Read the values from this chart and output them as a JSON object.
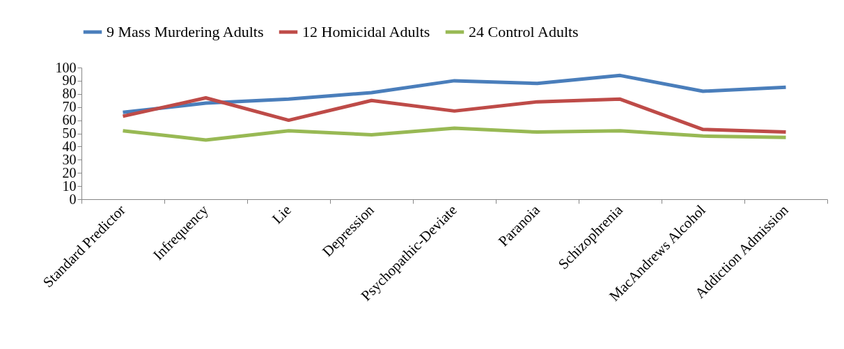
{
  "chart_data": {
    "type": "line",
    "categories": [
      "Standard Predictor",
      "Infrequency",
      "Lie",
      "Depression",
      "Psychopathic-Deviate",
      "Paranoia",
      "Schizophrenia",
      "MacAndrews Alcohol",
      "Addiction Admission"
    ],
    "series": [
      {
        "name": "9 Mass Murdering Adults",
        "color": "#4a7ebb",
        "values": [
          66,
          73,
          76,
          81,
          90,
          88,
          94,
          82,
          85
        ]
      },
      {
        "name": "12 Homicidal Adults",
        "color": "#be4b48",
        "values": [
          63,
          77,
          60,
          75,
          67,
          74,
          76,
          53,
          51
        ]
      },
      {
        "name": "24 Control Adults",
        "color": "#98b954",
        "values": [
          52,
          45,
          52,
          49,
          54,
          51,
          52,
          48,
          47
        ]
      }
    ],
    "ylim": [
      0,
      100
    ],
    "yticks": [
      0,
      10,
      20,
      30,
      40,
      50,
      60,
      70,
      80,
      90,
      100
    ],
    "grid": false,
    "legend": "top",
    "marker": "none",
    "line_style": "solid"
  }
}
